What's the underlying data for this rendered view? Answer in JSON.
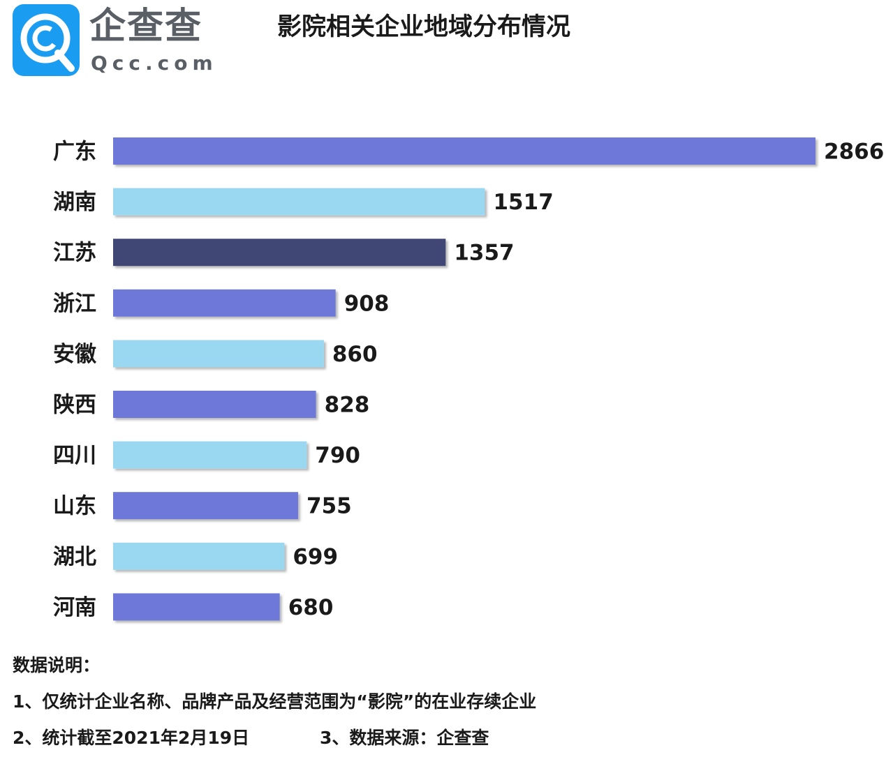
{
  "header": {
    "logo_name": "企查查",
    "logo_domain": "Qcc.com",
    "title": "影院相关企业地域分布情况"
  },
  "chart_data": {
    "type": "bar",
    "orientation": "horizontal",
    "categories": [
      "广东",
      "湖南",
      "江苏",
      "浙江",
      "安徽",
      "陕西",
      "四川",
      "山东",
      "湖北",
      "河南"
    ],
    "values": [
      2866,
      1517,
      1357,
      908,
      860,
      828,
      790,
      755,
      699,
      680
    ],
    "bar_colors": [
      "#6e78d9",
      "#9ad8f2",
      "#3f4674",
      "#6e78d9",
      "#9ad8f2",
      "#6e78d9",
      "#9ad8f2",
      "#6e78d9",
      "#9ad8f2",
      "#6e78d9"
    ],
    "data_labels": [
      "2866",
      "1517",
      "1357",
      "908",
      "860",
      "828",
      "790",
      "755",
      "699",
      "680"
    ],
    "title": "影院相关企业地域分布情况",
    "xlim": [
      0,
      2866
    ],
    "grid": false,
    "legend": "none"
  },
  "notes": {
    "heading": "数据说明：",
    "line1": "1、仅统计企业名称、品牌产品及经营范围为“影院”的在业存续企业",
    "line2": "2、统计截至2021年2月19日",
    "line3": "3、数据来源：企查查"
  }
}
